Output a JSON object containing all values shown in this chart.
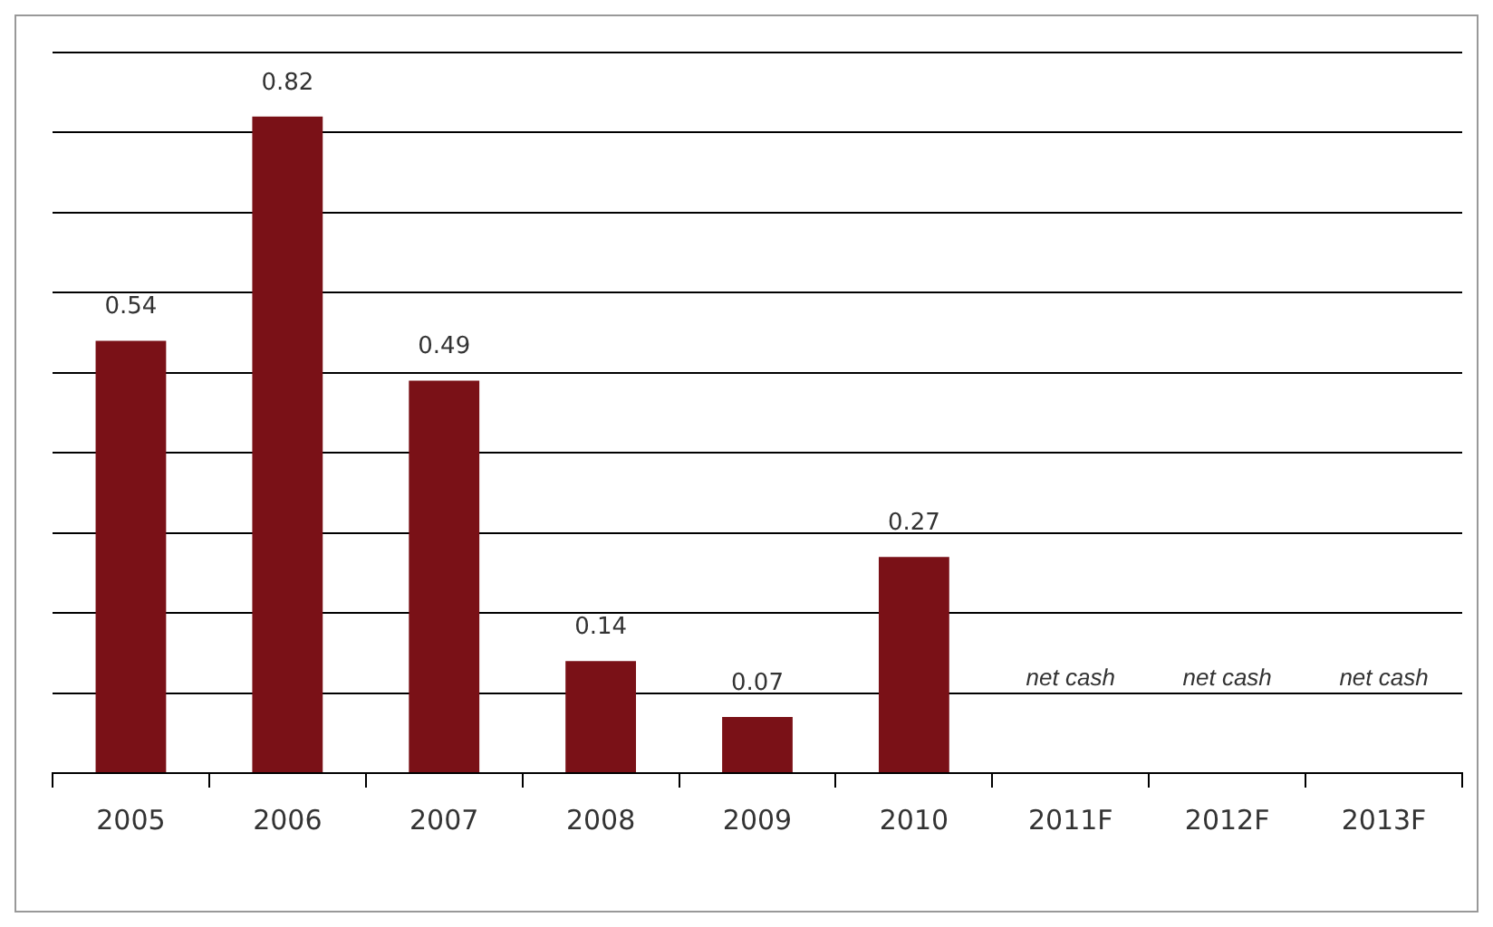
{
  "chart_data": {
    "type": "bar",
    "categories": [
      "2005",
      "2006",
      "2007",
      "2008",
      "2009",
      "2010",
      "2011F",
      "2012F",
      "2013F"
    ],
    "values": [
      0.54,
      0.82,
      0.49,
      0.14,
      0.07,
      0.27,
      null,
      null,
      null
    ],
    "color": "#7a1117",
    "data_labels": true,
    "ylim": [
      0,
      0.9
    ],
    "yticks": [
      {
        "value": 0,
        "label": null
      },
      {
        "value": 0.1,
        "label": null
      },
      {
        "value": 0.2,
        "label": null
      },
      {
        "value": 0.3,
        "label": null
      },
      {
        "value": 0.4,
        "label": null
      },
      {
        "value": 0.5,
        "label": null
      },
      {
        "value": 0.6,
        "label": null
      },
      {
        "value": 0.7,
        "label": null
      },
      {
        "value": 0.8,
        "label": null
      },
      {
        "value": 0.9,
        "label": null
      }
    ],
    "tick_labels": "x",
    "grid": "y",
    "legend": false,
    "annotations": [
      "net cash",
      "net cash",
      "net cash"
    ]
  }
}
